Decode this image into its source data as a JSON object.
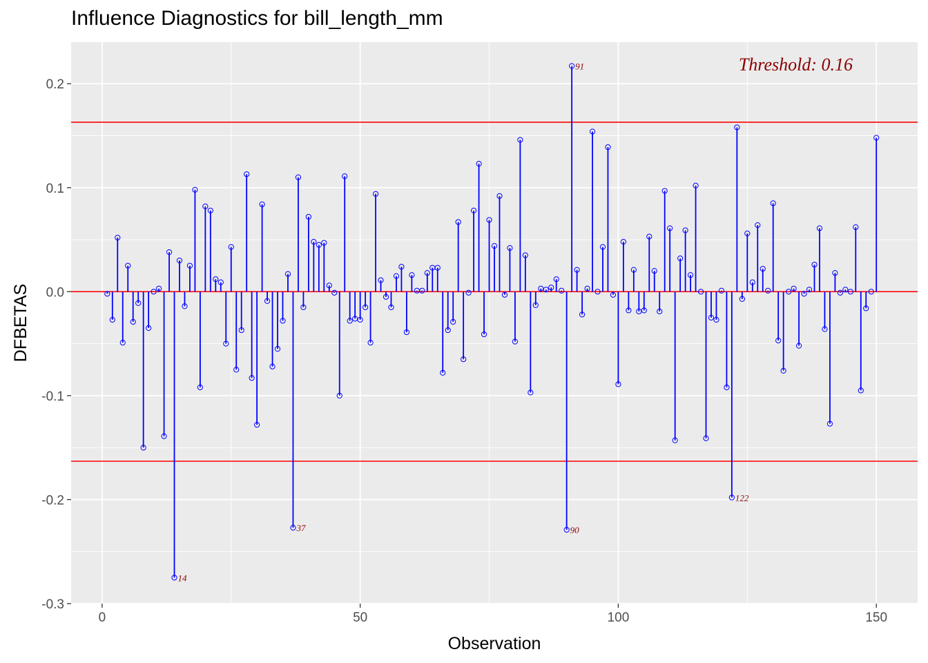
{
  "chart_data": {
    "type": "scatter",
    "title": "Influence Diagnostics for bill_length_mm",
    "xlabel": "Observation",
    "ylabel": "DFBETAS",
    "xlim": [
      -6,
      158
    ],
    "ylim": [
      -0.3,
      0.24
    ],
    "x_ticks": [
      0,
      50,
      100,
      150
    ],
    "y_ticks": [
      -0.3,
      -0.2,
      -0.1,
      0.0,
      0.1,
      0.2
    ],
    "x_tick_labels": [
      "0",
      "50",
      "100",
      "150"
    ],
    "y_tick_labels": [
      "-0.3",
      "-0.2",
      "-0.1",
      "0.0",
      "0.1",
      "0.2"
    ],
    "grid": true,
    "threshold": 0.163,
    "threshold_label": "Threshold: 0.16",
    "colors": {
      "panel": "#ebebeb",
      "grid": "#ffffff",
      "stem": "#0000ff",
      "threshold_line": "#ff0000",
      "label": "#8b0000"
    },
    "series": [
      {
        "x": [
          1,
          2,
          3,
          4,
          5,
          6,
          7,
          8,
          9,
          10,
          11,
          12,
          13,
          14,
          15,
          16,
          17,
          18,
          19,
          20,
          21,
          22,
          23,
          24,
          25,
          26,
          27,
          28,
          29,
          30,
          31,
          32,
          33,
          34,
          35,
          36,
          37,
          38,
          39,
          40,
          41,
          42,
          43,
          44,
          45,
          46,
          47,
          48,
          49,
          50,
          51,
          52,
          53,
          54,
          55,
          56,
          57,
          58,
          59,
          60,
          61,
          62,
          63,
          64,
          65,
          66,
          67,
          68,
          69,
          70,
          71,
          72,
          73,
          74,
          75,
          76,
          77,
          78,
          79,
          80,
          81,
          82,
          83,
          84,
          85,
          86,
          87,
          88,
          89,
          90,
          91,
          92,
          93,
          94,
          95,
          96,
          97,
          98,
          99,
          100,
          101,
          102,
          103,
          104,
          105,
          106,
          107,
          108,
          109,
          110,
          111,
          112,
          113,
          114,
          115,
          116,
          117,
          118,
          119,
          120,
          121,
          122,
          123,
          124,
          125,
          126,
          127,
          128,
          129,
          130,
          131,
          132,
          133,
          134,
          135,
          136,
          137,
          138,
          139,
          140,
          141,
          142,
          143,
          144,
          145,
          146,
          147,
          148,
          149,
          150
        ],
        "y": [
          -0.002,
          -0.027,
          0.052,
          -0.049,
          0.025,
          -0.029,
          -0.011,
          -0.15,
          -0.035,
          0.0,
          0.003,
          -0.139,
          0.038,
          -0.275,
          0.03,
          -0.014,
          0.025,
          0.098,
          -0.092,
          0.082,
          0.078,
          0.012,
          0.009,
          -0.05,
          0.043,
          -0.075,
          -0.037,
          0.113,
          -0.083,
          -0.128,
          0.084,
          -0.009,
          -0.072,
          -0.055,
          -0.028,
          0.017,
          -0.227,
          0.11,
          -0.015,
          0.072,
          0.048,
          0.045,
          0.047,
          0.006,
          -0.001,
          -0.1,
          0.111,
          -0.028,
          -0.026,
          -0.027,
          -0.015,
          -0.049,
          0.094,
          0.011,
          -0.005,
          -0.015,
          0.015,
          0.024,
          -0.039,
          0.016,
          0.001,
          0.001,
          0.018,
          0.023,
          0.023,
          -0.078,
          -0.037,
          -0.029,
          0.067,
          -0.065,
          -0.001,
          0.078,
          0.123,
          -0.041,
          0.069,
          0.044,
          0.092,
          -0.003,
          0.042,
          -0.048,
          0.146,
          0.035,
          -0.097,
          -0.013,
          0.003,
          0.002,
          0.004,
          0.012,
          0.001,
          -0.229,
          0.217,
          0.021,
          -0.022,
          0.003,
          0.154,
          0.0,
          0.043,
          0.139,
          -0.003,
          -0.089,
          0.048,
          -0.018,
          0.021,
          -0.019,
          -0.018,
          0.053,
          0.02,
          -0.019,
          0.097,
          0.061,
          -0.143,
          0.032,
          0.059,
          0.016,
          0.102,
          0.0,
          -0.141,
          -0.025,
          -0.027,
          0.001,
          -0.092,
          -0.198,
          0.158,
          -0.007,
          0.056,
          0.009,
          0.064,
          0.022,
          0.001,
          0.085,
          -0.047,
          -0.076,
          0.0,
          0.003,
          -0.052,
          -0.002,
          0.002,
          0.026,
          0.061,
          -0.036,
          -0.127,
          0.018,
          -0.001,
          0.002,
          0.0,
          0.062,
          -0.095,
          -0.016,
          0.0,
          0.148
        ]
      }
    ],
    "labeled_points": [
      {
        "x": 14,
        "label": "14"
      },
      {
        "x": 37,
        "label": "37"
      },
      {
        "x": 90,
        "label": "90"
      },
      {
        "x": 91,
        "label": "91"
      },
      {
        "x": 122,
        "label": "122"
      }
    ]
  }
}
